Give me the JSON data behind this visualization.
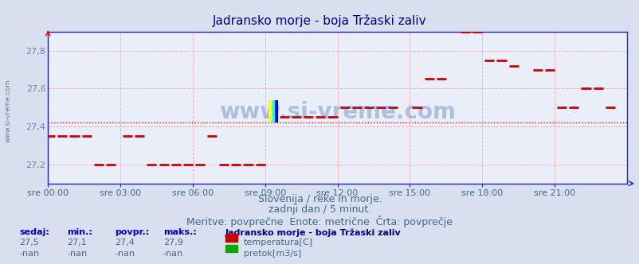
{
  "title": "Jadransko morje - boja Tržaski zaliv",
  "background_color": "#d8e0f0",
  "plot_bg_color": "#eaeef8",
  "grid_color": "#ffaaaa",
  "axis_color": "#2222cc",
  "title_color": "#000088",
  "ylabel_color": "#6688aa",
  "xlabel_color": "#446688",
  "ylim": [
    27.1,
    27.9
  ],
  "yticks": [
    27.2,
    27.4,
    27.6,
    27.8
  ],
  "ytick_labels": [
    "27,2",
    "27,4",
    "27,6",
    "27,8"
  ],
  "xtick_labels": [
    "sre 00:00",
    "sre 03:00",
    "sre 06:00",
    "sre 09:00",
    "sre 12:00",
    "sre 15:00",
    "sre 18:00",
    "sre 21:00"
  ],
  "xtick_positions": [
    0,
    3,
    6,
    9,
    12,
    15,
    18,
    21
  ],
  "xlim": [
    0,
    24
  ],
  "avg_line_y": 27.42,
  "avg_line_color": "#ff0000",
  "temp_color": "#cc0000",
  "temp_data_x": [
    0.1,
    0.6,
    1.1,
    1.6,
    2.1,
    2.6,
    3.3,
    3.8,
    4.3,
    4.8,
    5.3,
    5.8,
    6.3,
    6.8,
    7.3,
    7.8,
    8.3,
    8.8,
    9.3,
    9.8,
    10.3,
    10.8,
    11.3,
    11.8,
    12.3,
    12.8,
    13.3,
    13.8,
    14.3,
    15.3,
    15.8,
    16.3,
    17.3,
    17.8,
    18.3,
    18.8,
    19.3,
    20.3,
    20.8,
    21.3,
    21.8,
    22.3,
    22.8,
    23.3
  ],
  "temp_data_y": [
    27.35,
    27.35,
    27.35,
    27.35,
    27.2,
    27.2,
    27.35,
    27.35,
    27.2,
    27.2,
    27.2,
    27.2,
    27.2,
    27.35,
    27.2,
    27.2,
    27.2,
    27.2,
    27.45,
    27.45,
    27.45,
    27.45,
    27.45,
    27.45,
    27.5,
    27.5,
    27.5,
    27.5,
    27.5,
    27.5,
    27.65,
    27.65,
    27.9,
    27.9,
    27.75,
    27.75,
    27.72,
    27.7,
    27.7,
    27.5,
    27.5,
    27.6,
    27.6,
    27.5
  ],
  "watermark_text": "www.si-vreme.com",
  "watermark_color": "#2255aa",
  "watermark_alpha": 0.3,
  "footer_lines": [
    "Slovenija / reke in morje.",
    "zadnji dan / 5 minut.",
    "Meritve: povprečne  Enote: metrične  Črta: povprečje"
  ],
  "footer_color": "#446688",
  "footer_fontsize": 9,
  "stats_labels": [
    "sedaj:",
    "min.:",
    "povpr.:",
    "maks.:"
  ],
  "stats_values_temp": [
    "27,5",
    "27,1",
    "27,4",
    "27,9"
  ],
  "stats_values_pretok": [
    "-nan",
    "-nan",
    "-nan",
    "-nan"
  ],
  "legend_title": "Jadransko morje - boja Tržaski zaliv",
  "legend_temp_color": "#cc0000",
  "legend_pretok_color": "#00aa00",
  "legend_temp_label": "temperatura[C]",
  "legend_pretok_label": "pretok[m3/s]",
  "side_watermark": "www.si-vreme.com"
}
